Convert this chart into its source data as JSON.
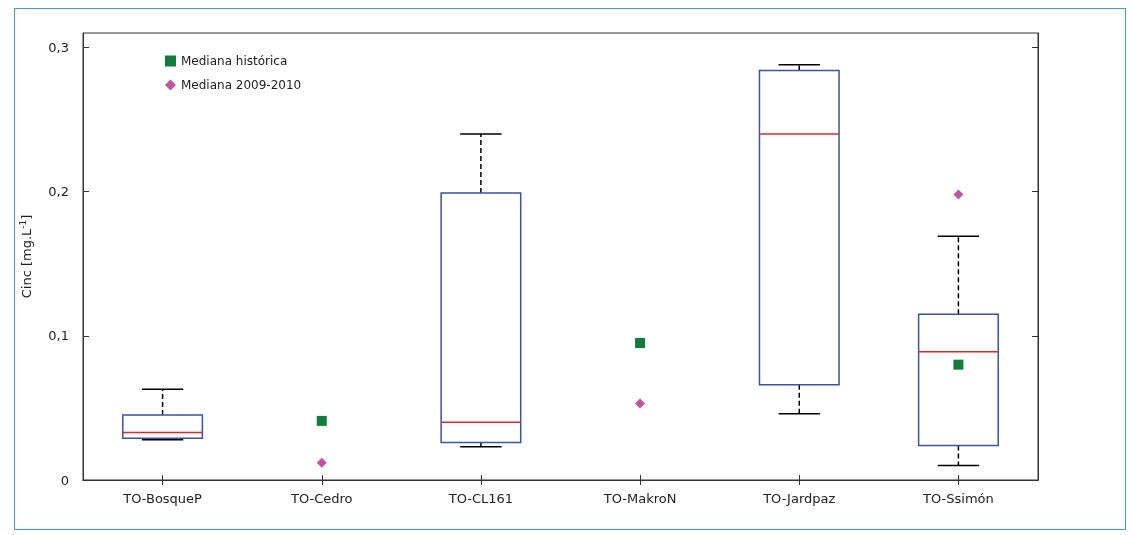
{
  "chart_data": {
    "type": "box",
    "ylabel": "Cinc [mg.L$^{-1}$]",
    "categories": [
      "TO-BosqueP",
      "TO-Cedro",
      "TO-CL161",
      "TO-MakroN",
      "TO-Jardpaz",
      "TO-Ssimón"
    ],
    "boxes": [
      {
        "low": 0.028,
        "q1": 0.029,
        "median": 0.033,
        "q3": 0.045,
        "high": 0.063
      },
      null,
      {
        "low": 0.023,
        "q1": 0.026,
        "median": 0.04,
        "q3": 0.199,
        "high": 0.24
      },
      null,
      {
        "low": 0.046,
        "q1": 0.066,
        "median": 0.24,
        "q3": 0.284,
        "high": 0.288
      },
      {
        "low": 0.01,
        "q1": 0.024,
        "median": 0.089,
        "q3": 0.115,
        "high": 0.169
      }
    ],
    "color": "#3b52a8",
    "series": [
      {
        "type": "scatter",
        "name": "Mediana histórica",
        "color": "#127c3c",
        "marker": "square",
        "x": [
          "TO-Cedro",
          "TO-MakroN",
          "TO-Ssimón"
        ],
        "values": [
          0.041,
          0.095,
          0.08
        ]
      },
      {
        "type": "scatter",
        "name": "Mediana 2009-2010",
        "color": "#c2549f",
        "marker": "diamond",
        "x": [
          "TO-Cedro",
          "TO-MakroN",
          "TO-Ssimón"
        ],
        "values": [
          0.012,
          0.053,
          0.198
        ]
      }
    ],
    "ylim": [
      0,
      0.31
    ],
    "yticks": [
      0,
      {
        "value": 0.1,
        "label": "0,1"
      },
      {
        "value": 0.2,
        "label": "0,2"
      },
      {
        "value": 0.3,
        "label": "0,3"
      }
    ],
    "grid": false,
    "legend": "top left"
  }
}
